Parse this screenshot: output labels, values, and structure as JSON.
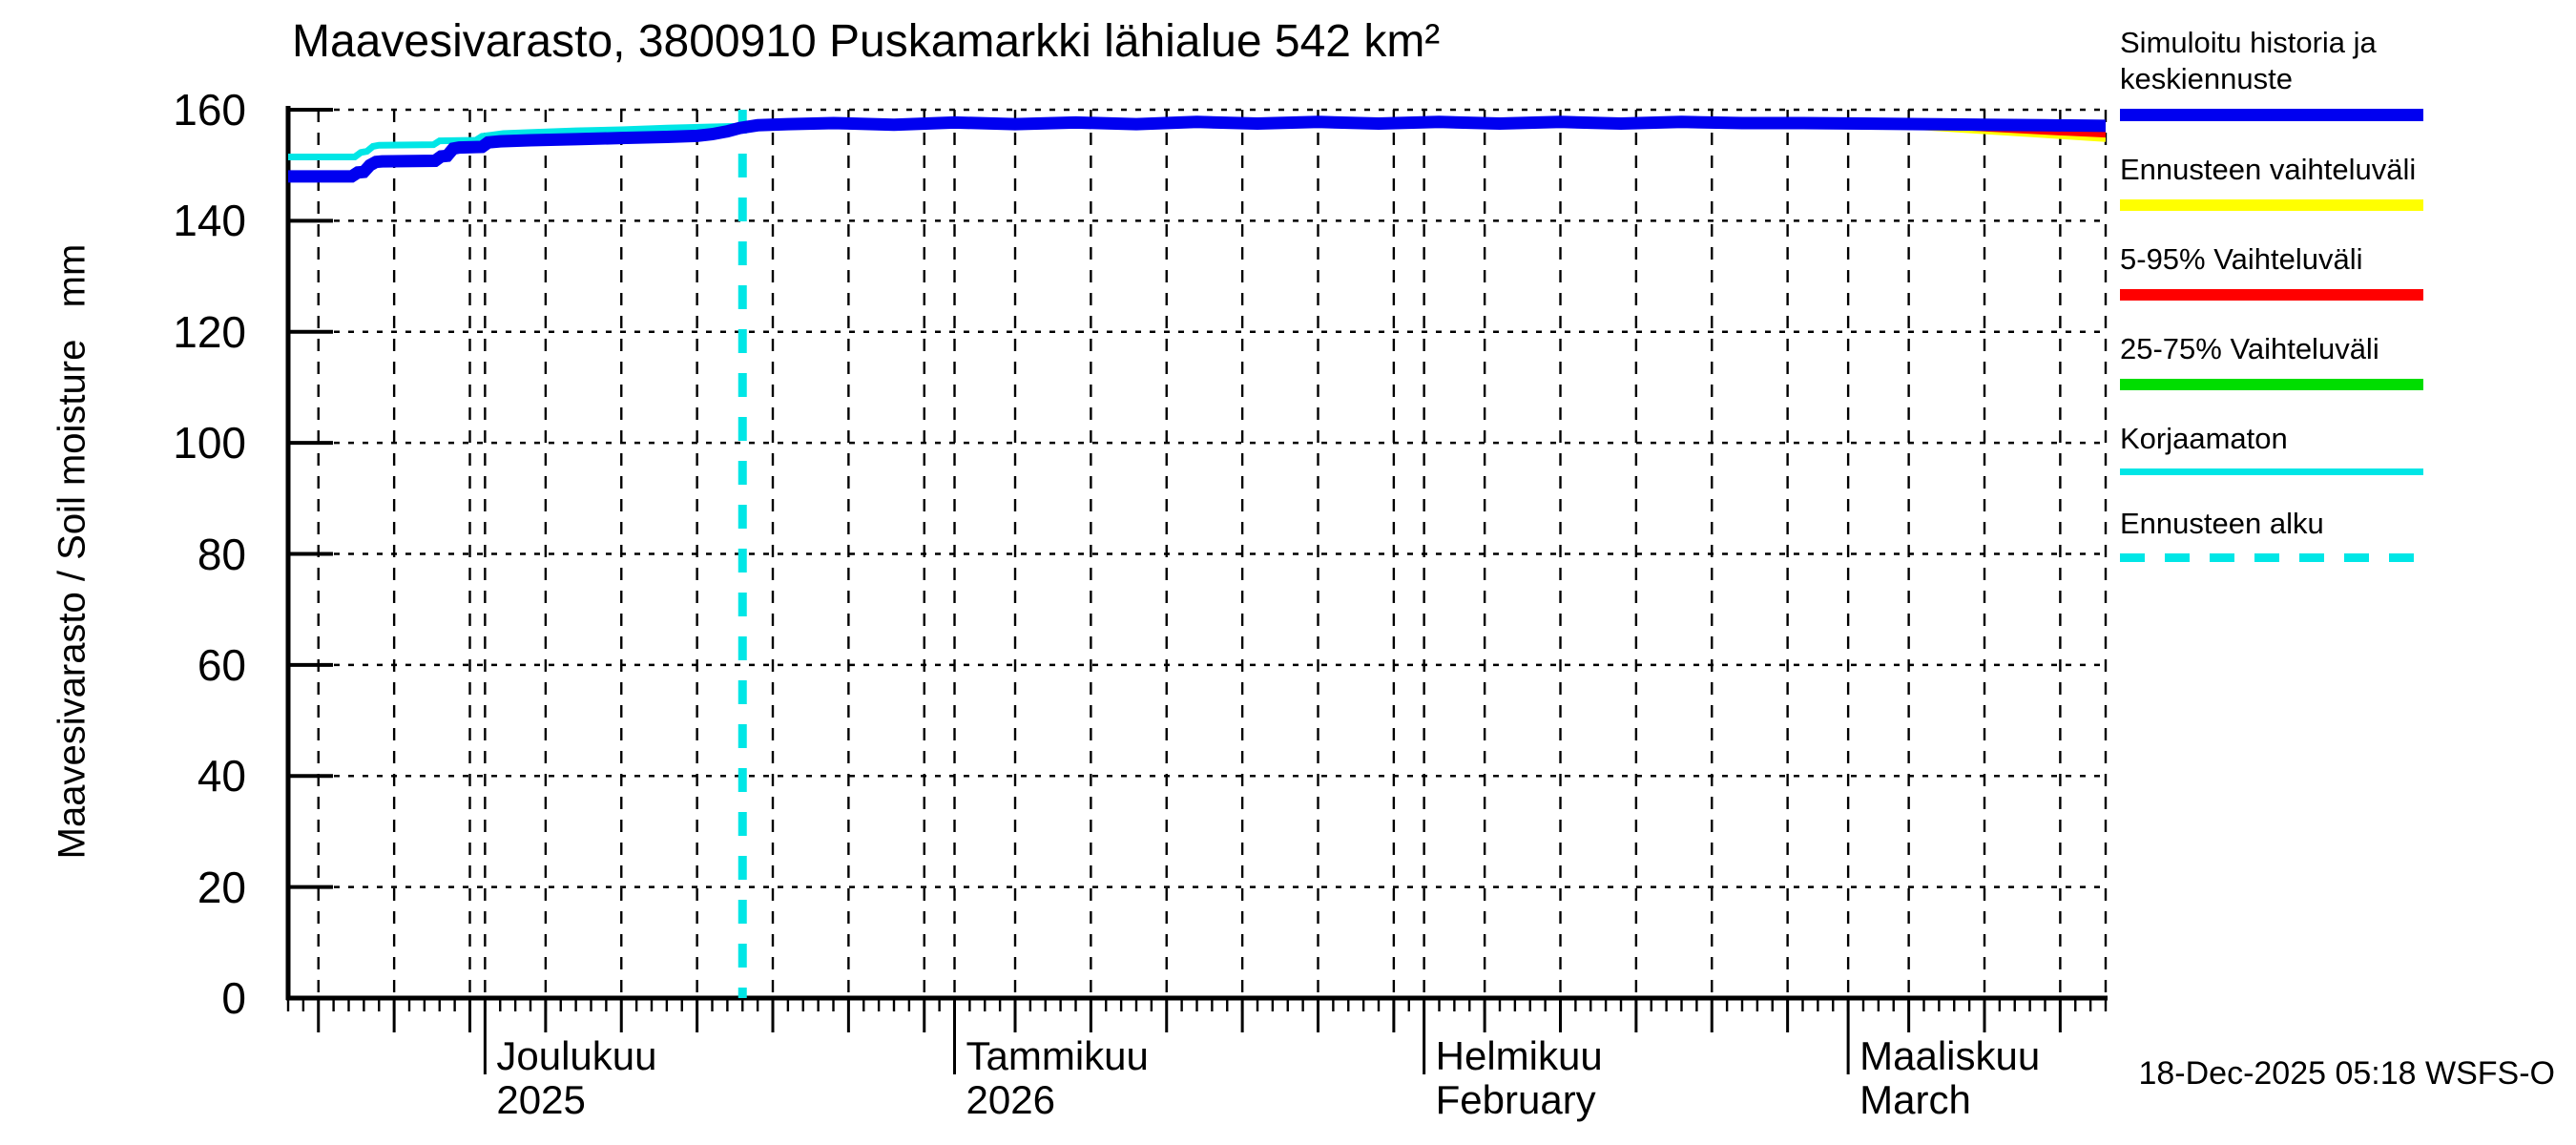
{
  "title": "Maavesivarasto, 3800910 Puskamarkki lähialue 542 km²",
  "y_axis": {
    "label": "Maavesivarasto / Soil moisture   mm",
    "ticks": [
      0,
      20,
      40,
      60,
      80,
      100,
      120,
      140,
      160
    ],
    "min": 0,
    "max": 160
  },
  "x_axis": {
    "start_date": "2025-11-18",
    "range_days": 120,
    "months": [
      {
        "label": "Joulukuu",
        "sub": "2025",
        "day": 13
      },
      {
        "label": "Tammikuu",
        "sub": "2026",
        "day": 44
      },
      {
        "label": "Helmikuu",
        "sub": "February",
        "day": 75
      },
      {
        "label": "Maaliskuu",
        "sub": "March",
        "day": 103
      }
    ],
    "gridline_days": [
      2,
      7,
      12,
      13,
      17,
      22,
      27,
      32,
      37,
      42,
      44,
      48,
      53,
      58,
      63,
      68,
      73,
      75,
      79,
      84,
      89,
      94,
      99,
      103,
      107,
      112,
      117,
      120
    ],
    "medium_tick_days": [
      2,
      7,
      12,
      17,
      22,
      27,
      32,
      37,
      42,
      48,
      53,
      58,
      63,
      68,
      73,
      79,
      84,
      89,
      94,
      99,
      107,
      112,
      117
    ]
  },
  "legend": {
    "items": [
      {
        "label": "Simuloitu historia ja keskiennuste",
        "color": "#0000f0",
        "style": "solid",
        "thickness": 13
      },
      {
        "label": "Ennusteen vaihteluväli",
        "color": "#ffff00",
        "style": "solid",
        "thickness": 12
      },
      {
        "label": "5-95% Vaihteluväli",
        "color": "#ff0000",
        "style": "solid",
        "thickness": 12
      },
      {
        "label": "25-75% Vaihteluväli",
        "color": "#00dd00",
        "style": "solid",
        "thickness": 12
      },
      {
        "label": "Korjaamaton",
        "color": "#00e6e6",
        "style": "solid",
        "thickness": 7
      },
      {
        "label": "Ennusteen alku",
        "color": "#00e6e6",
        "style": "dashed",
        "thickness": 9
      }
    ]
  },
  "footer": {
    "timestamp": "18-Dec-2025 05:18 WSFS-O"
  },
  "chart_data": {
    "type": "line",
    "title": "Maavesivarasto, 3800910 Puskamarkki lähialue 542 km²",
    "xlabel": "",
    "ylabel": "Maavesivarasto / Soil moisture mm",
    "x_unit": "days since 2025-11-18",
    "y_unit": "mm",
    "xlim_days": [
      0,
      120
    ],
    "ylim": [
      0,
      160
    ],
    "grid": true,
    "legend_position": "right",
    "forecast_start_day": 30,
    "forecast_start_color": "#00e6e6",
    "series": [
      {
        "name": "Simuloitu historia ja keskiennuste",
        "color": "#0000f0",
        "width": 13,
        "points": [
          [
            0,
            148.0
          ],
          [
            4.2,
            148.0
          ],
          [
            4.6,
            148.7
          ],
          [
            5.0,
            148.8
          ],
          [
            5.4,
            150.0
          ],
          [
            5.8,
            150.6
          ],
          [
            6.2,
            150.7
          ],
          [
            9.7,
            150.8
          ],
          [
            10.1,
            151.6
          ],
          [
            10.5,
            151.7
          ],
          [
            10.9,
            153.0
          ],
          [
            11.3,
            153.2
          ],
          [
            12.8,
            153.3
          ],
          [
            13.2,
            154.1
          ],
          [
            14.0,
            154.3
          ],
          [
            16,
            154.5
          ],
          [
            19,
            154.7
          ],
          [
            22,
            154.9
          ],
          [
            25,
            155.1
          ],
          [
            27,
            155.3
          ],
          [
            28,
            155.6
          ],
          [
            29,
            156.1
          ],
          [
            29.8,
            156.7
          ],
          [
            31,
            157.2
          ],
          [
            33,
            157.4
          ],
          [
            36,
            157.6
          ],
          [
            40,
            157.3
          ],
          [
            44,
            157.7
          ],
          [
            48,
            157.4
          ],
          [
            52,
            157.7
          ],
          [
            56,
            157.4
          ],
          [
            60,
            157.8
          ],
          [
            64,
            157.5
          ],
          [
            68,
            157.8
          ],
          [
            72,
            157.5
          ],
          [
            76,
            157.8
          ],
          [
            80,
            157.5
          ],
          [
            84,
            157.8
          ],
          [
            88,
            157.5
          ],
          [
            92,
            157.8
          ],
          [
            96,
            157.6
          ],
          [
            100,
            157.6
          ],
          [
            104,
            157.5
          ],
          [
            108,
            157.4
          ],
          [
            112,
            157.3
          ],
          [
            116,
            157.2
          ],
          [
            120,
            157.1
          ]
        ]
      },
      {
        "name": "Korjaamaton",
        "color": "#00e6e6",
        "width": 7,
        "points": [
          [
            0,
            151.5
          ],
          [
            4.4,
            151.5
          ],
          [
            4.8,
            152.3
          ],
          [
            5.2,
            152.5
          ],
          [
            5.6,
            153.4
          ],
          [
            6.0,
            153.6
          ],
          [
            9.6,
            153.7
          ],
          [
            10.0,
            154.4
          ],
          [
            12.4,
            154.5
          ],
          [
            12.8,
            155.2
          ],
          [
            13.4,
            155.4
          ],
          [
            14.2,
            155.7
          ],
          [
            16,
            155.9
          ],
          [
            19,
            156.2
          ],
          [
            22,
            156.4
          ],
          [
            25,
            156.7
          ],
          [
            28,
            156.9
          ],
          [
            29.4,
            157.0
          ],
          [
            30,
            157.05
          ]
        ]
      }
    ],
    "bands": [
      {
        "name": "Ennusteen vaihteluväli",
        "color": "#ffff00",
        "upper": [
          [
            30,
            157.4
          ],
          [
            60,
            158.2
          ],
          [
            90,
            158.2
          ],
          [
            120,
            157.6
          ]
        ],
        "lower": [
          [
            30,
            156.6
          ],
          [
            96,
            157.3
          ],
          [
            100,
            157.2
          ],
          [
            104,
            156.9
          ],
          [
            108,
            156.3
          ],
          [
            112,
            155.6
          ],
          [
            116,
            154.9
          ],
          [
            120,
            154.2
          ]
        ]
      },
      {
        "name": "5-95% Vaihteluväli",
        "color": "#ff0000",
        "upper": [
          [
            30,
            157.4
          ],
          [
            60,
            158.1
          ],
          [
            90,
            158.1
          ],
          [
            120,
            157.5
          ]
        ],
        "lower": [
          [
            30,
            156.8
          ],
          [
            96,
            157.4
          ],
          [
            100,
            157.3
          ],
          [
            104,
            157.1
          ],
          [
            108,
            156.7
          ],
          [
            112,
            156.1
          ],
          [
            116,
            155.5
          ],
          [
            120,
            155.0
          ]
        ]
      },
      {
        "name": "25-75% Vaihteluväli",
        "color": "#00dd00",
        "upper": [
          [
            30,
            157.4
          ],
          [
            75,
            158.1
          ],
          [
            120,
            157.5
          ]
        ],
        "lower": [
          [
            30,
            156.9
          ],
          [
            75,
            157.4
          ],
          [
            104,
            157.2
          ],
          [
            112,
            156.8
          ],
          [
            120,
            156.6
          ]
        ]
      }
    ]
  }
}
